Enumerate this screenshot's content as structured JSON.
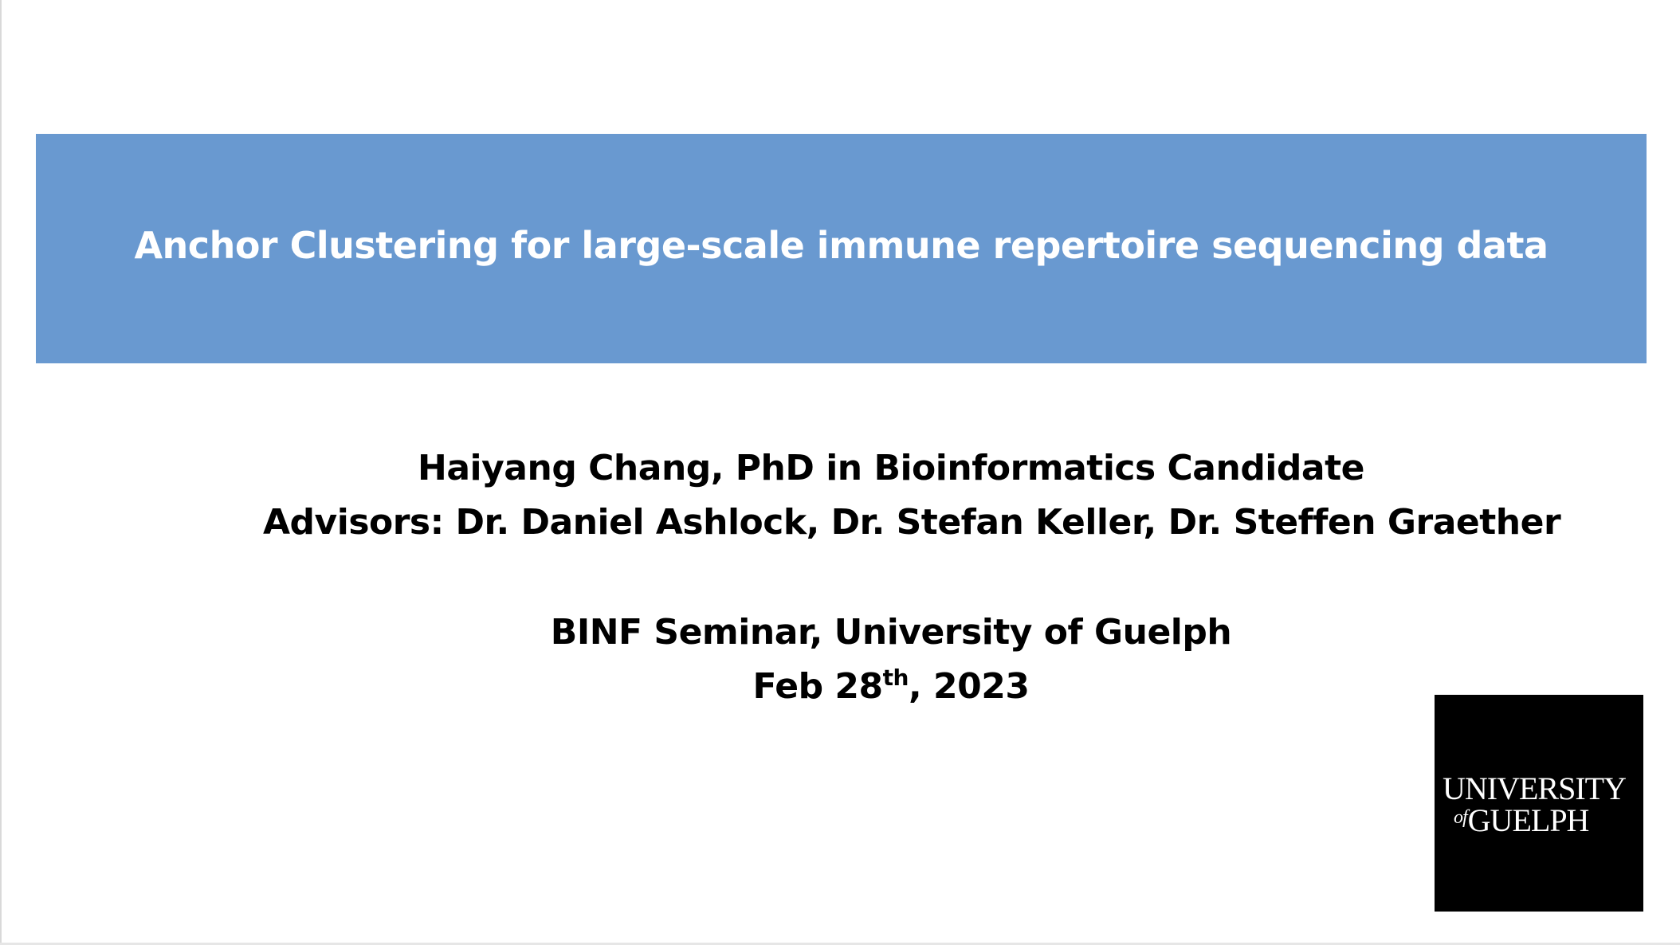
{
  "slide": {
    "title": "Anchor Clustering for large-scale immune repertoire sequencing data",
    "author_line": "Haiyang Chang, PhD in Bioinformatics Candidate",
    "advisors_line": "Advisors: Dr. Daniel Ashlock, Dr. Stefan Keller, Dr. Steffen Graether",
    "event_line": "BINF Seminar, University of Guelph",
    "date": {
      "prefix": "Feb 28",
      "superscript": "th",
      "suffix": ", 2023"
    },
    "logo": {
      "line1": "UNIVERSITY",
      "of_text": "of",
      "line2": "GUELPH"
    }
  },
  "colors": {
    "banner": "#6999d0",
    "banner_text": "#ffffff",
    "body_text": "#000000",
    "logo_bg": "#000000",
    "logo_text": "#ffffff"
  }
}
